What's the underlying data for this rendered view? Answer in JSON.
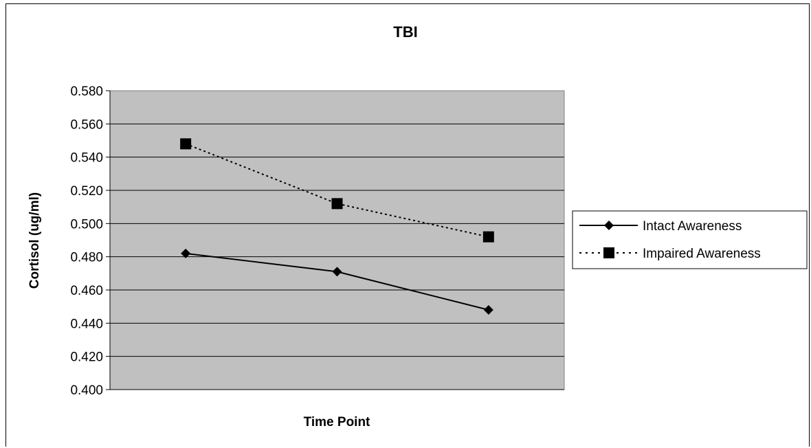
{
  "chart_data": {
    "type": "line",
    "title": "TBI",
    "xlabel": "Time Point",
    "ylabel": "Cortisol (ug/ml)",
    "ylim": [
      0.4,
      0.58
    ],
    "ytick_step": 0.02,
    "ytick_labels": [
      "0.400",
      "0.420",
      "0.440",
      "0.460",
      "0.480",
      "0.500",
      "0.520",
      "0.540",
      "0.560",
      "0.580"
    ],
    "grid": true,
    "legend_position": "right",
    "plot_background": "#c0c0c0",
    "x": [
      1,
      2,
      3
    ],
    "series": [
      {
        "name": "Intact Awareness",
        "values": [
          0.482,
          0.471,
          0.448
        ],
        "line_style": "solid",
        "marker": "diamond",
        "color": "#000000"
      },
      {
        "name": "Impaired Awareness",
        "values": [
          0.548,
          0.512,
          0.492
        ],
        "line_style": "dotted",
        "marker": "square",
        "color": "#000000"
      }
    ]
  }
}
